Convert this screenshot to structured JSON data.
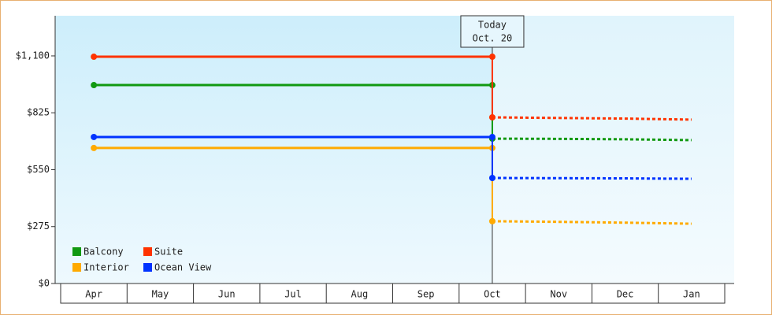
{
  "chart_data": {
    "type": "line",
    "categories": [
      "Apr",
      "May",
      "Jun",
      "Jul",
      "Aug",
      "Sep",
      "Oct",
      "Nov",
      "Dec",
      "Jan"
    ],
    "series": [
      {
        "name": "Balcony",
        "color": "#119911",
        "values": [
          959,
          959,
          959,
          959,
          959,
          959,
          959,
          null,
          null,
          null
        ],
        "forecast": [
          null,
          null,
          null,
          null,
          null,
          null,
          700,
          699,
          697,
          693
        ]
      },
      {
        "name": "Suite",
        "color": "#ff3300",
        "values": [
          1096,
          1096,
          1096,
          1096,
          1096,
          1096,
          1096,
          null,
          null,
          null
        ],
        "forecast": [
          null,
          null,
          null,
          null,
          null,
          null,
          803,
          800,
          797,
          792
        ]
      },
      {
        "name": "Interior",
        "color": "#ffaa00",
        "values": [
          655,
          655,
          655,
          655,
          655,
          655,
          655,
          null,
          null,
          null
        ],
        "forecast": [
          null,
          null,
          null,
          null,
          null,
          null,
          301,
          298,
          294,
          289
        ]
      },
      {
        "name": "Ocean View",
        "color": "#0033ff",
        "values": [
          708,
          708,
          708,
          708,
          708,
          708,
          708,
          null,
          null,
          null
        ],
        "forecast": [
          null,
          null,
          null,
          null,
          null,
          null,
          510,
          509,
          508,
          506
        ]
      }
    ],
    "ylim": [
      0,
      1294
    ],
    "yticks": [
      {
        "value": 0,
        "label": "$0"
      },
      {
        "value": 275,
        "label": "$275"
      },
      {
        "value": 550,
        "label": "$550"
      },
      {
        "value": 825,
        "label": "$825"
      },
      {
        "value": 1100,
        "label": "$1,100"
      }
    ],
    "annotation": {
      "lines": [
        "Today",
        "Oct. 20"
      ],
      "at": "Oct"
    },
    "legend": "bottom-left"
  }
}
